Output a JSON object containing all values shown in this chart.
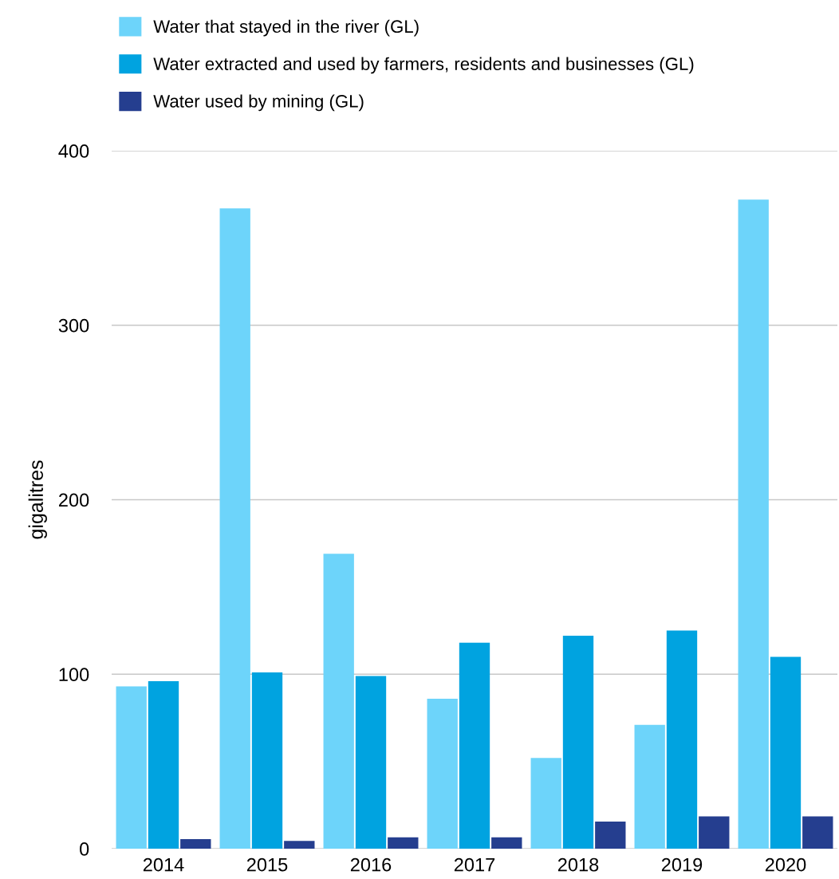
{
  "chart_data": {
    "type": "bar",
    "ylabel": "gigalitres",
    "categories": [
      "2014",
      "2015",
      "2016",
      "2017",
      "2018",
      "2019",
      "2020"
    ],
    "series": [
      {
        "name": "Water that stayed in the river (GL)",
        "color": "#6dd4fa",
        "values": [
          93,
          367,
          169,
          86,
          52,
          71,
          372
        ]
      },
      {
        "name": "Water extracted and used by farmers, residents and businesses (GL)",
        "color": "#00a3e0",
        "values": [
          96,
          101,
          99,
          118,
          122,
          125,
          110
        ]
      },
      {
        "name": "Water used by mining (GL)",
        "color": "#253e8f",
        "values": [
          5.5,
          4.5,
          6.5,
          6.5,
          15.5,
          18.5,
          18.5
        ]
      }
    ],
    "ylim": [
      0,
      400
    ],
    "yticks": [
      0,
      100,
      200,
      300,
      400
    ],
    "grid": "y",
    "legend": "top left"
  }
}
